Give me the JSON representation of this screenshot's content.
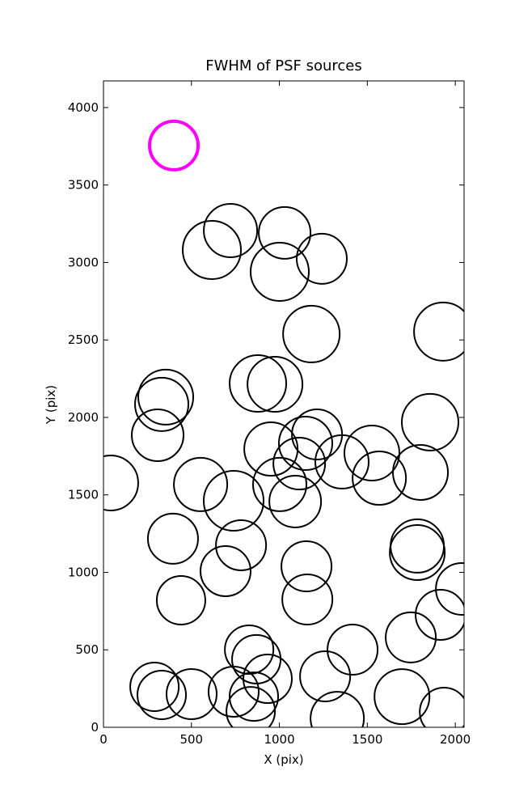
{
  "chart_data": {
    "type": "scatter",
    "title": "FWHM of PSF sources",
    "x_label": "X (pix)",
    "y_label": "Y (pix)",
    "xlim": [
      0,
      2050
    ],
    "ylim": [
      0,
      4172
    ],
    "xticks": [
      0,
      500,
      1000,
      1500,
      2000
    ],
    "yticks": [
      0,
      500,
      1000,
      1500,
      2000,
      2500,
      3000,
      3500,
      4000
    ],
    "series": [
      {
        "color": "#ff00ff",
        "linewidth": 4,
        "x": [
          400
        ],
        "y": [
          3755
        ],
        "sizes": [
          3.0
        ]
      },
      {
        "color": "#000000",
        "linewidth": 2,
        "x": [
          722,
          616,
          1030,
          1241,
          1002,
          1182,
          1931,
          878,
          975,
          354,
          331,
          308,
          1857,
          1214,
          1149,
          952,
          1113,
          1356,
          1526,
          1568,
          1802,
          41,
          552,
          1002,
          1090,
          740,
          782,
          395,
          1784,
          1784,
          1154,
          694,
          2037,
          1917,
          1159,
          441,
          1416,
          1747,
          828,
          869,
          933,
          1260,
          290,
          331,
          501,
          740,
          855,
          837,
          1697,
          1329,
          1936
        ],
        "y": [
          3206,
          3081,
          3191,
          3024,
          2940,
          2538,
          2554,
          2219,
          2214,
          2131,
          2084,
          1885,
          1969,
          1890,
          1833,
          1796,
          1702,
          1713,
          1770,
          1608,
          1645,
          1577,
          1567,
          1567,
          1457,
          1462,
          1175,
          1217,
          1170,
          1128,
          1039,
          1008,
          893,
          726,
          825,
          820,
          501,
          580,
          501,
          439,
          313,
          329,
          261,
          209,
          214,
          230,
          198,
          104,
          198,
          57,
          99
        ],
        "sizes": [
          3.3,
          3.6,
          3.2,
          3.1,
          3.6,
          3.5,
          3.6,
          3.5,
          3.4,
          3.4,
          3.3,
          3.2,
          3.5,
          3.1,
          3.3,
          3.3,
          3.2,
          3.3,
          3.4,
          3.3,
          3.4,
          3.4,
          3.3,
          3.3,
          3.2,
          3.7,
          3.1,
          3.1,
          3.3,
          3.4,
          3.1,
          3.1,
          3.2,
          3.1,
          3.1,
          3.0,
          3.1,
          3.1,
          3.0,
          3.0,
          3.0,
          3.1,
          3.0,
          3.0,
          3.1,
          3.1,
          3.0,
          3.0,
          3.4,
          3.3,
          3.0
        ]
      }
    ]
  }
}
